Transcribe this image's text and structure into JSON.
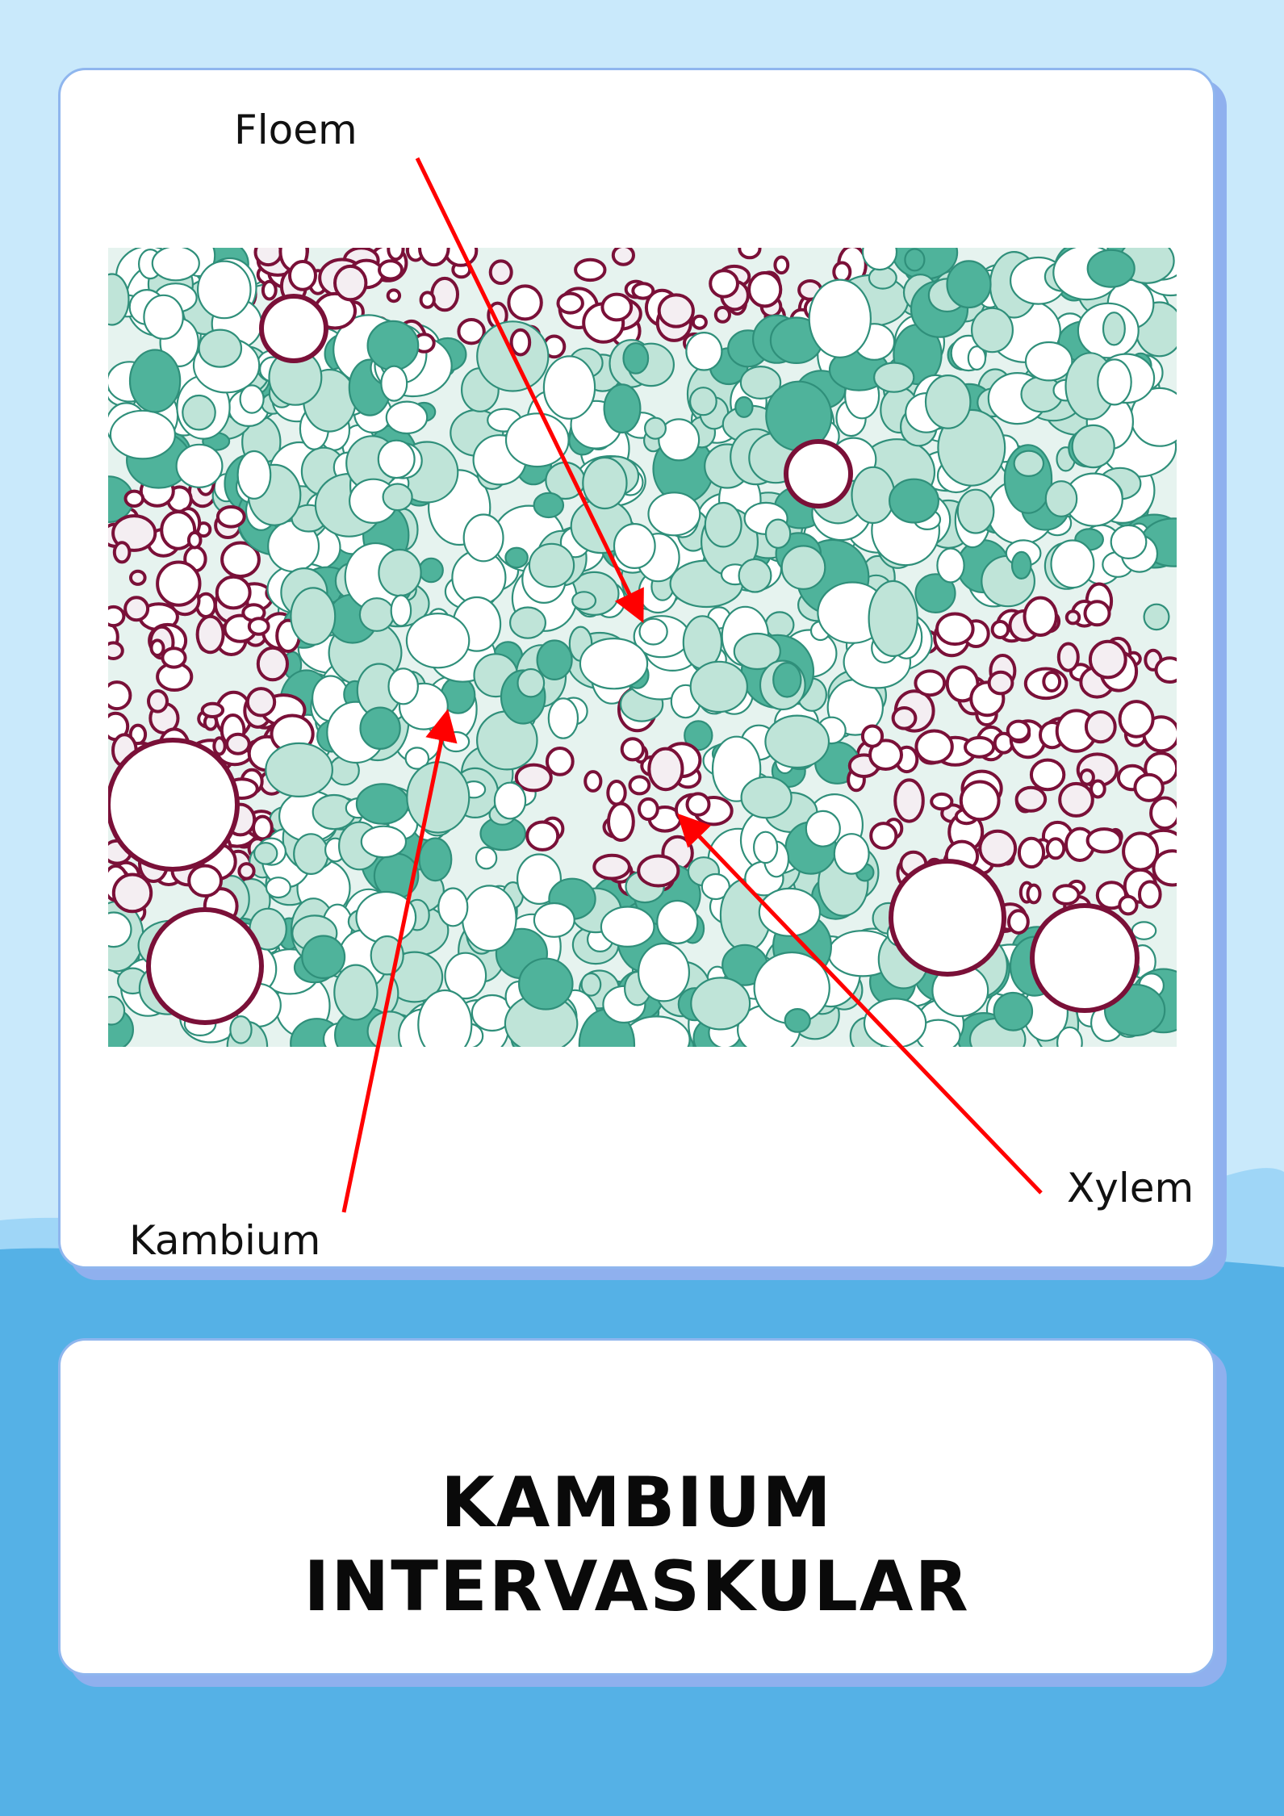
{
  "labels": {
    "floem": "Floem",
    "kambium": "Kambium",
    "xylem": "Xylem"
  },
  "title": {
    "line1": "KAMBIUM",
    "line2": "INTERVASKULAR"
  },
  "colors": {
    "background_top": "#c9e9fb",
    "background_bottom": "#55b1e6",
    "card_border": "#8fb6ee",
    "arrow": "#ff0000",
    "xylem_tissue": "#7a1038",
    "parenchyma_tissue": "#3aa88e"
  }
}
